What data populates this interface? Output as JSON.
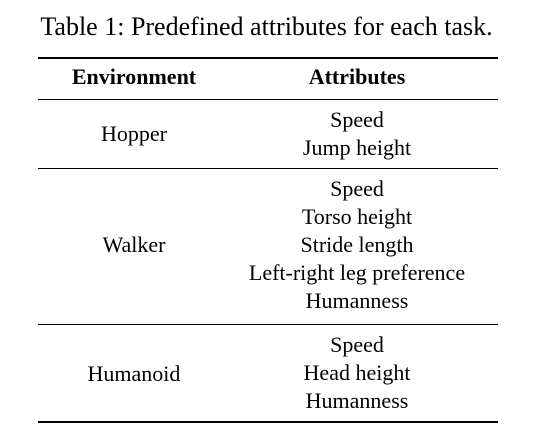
{
  "caption": "Table 1: Predefined attributes for each task.",
  "table": {
    "headers": {
      "environment": "Environment",
      "attributes": "Attributes"
    },
    "rows": [
      {
        "environment": "Hopper",
        "attributes": [
          "Speed",
          "Jump height"
        ]
      },
      {
        "environment": "Walker",
        "attributes": [
          "Speed",
          "Torso height",
          "Stride length",
          "Left-right leg preference",
          "Humanness"
        ]
      },
      {
        "environment": "Humanoid",
        "attributes": [
          "Speed",
          "Head height",
          "Humanness"
        ]
      }
    ]
  }
}
